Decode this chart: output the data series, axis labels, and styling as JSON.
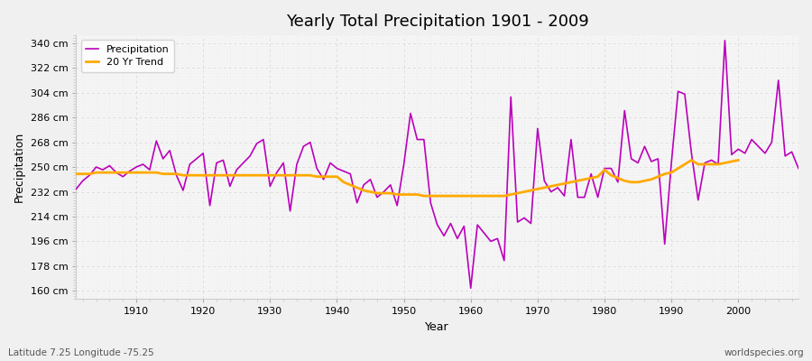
{
  "title": "Yearly Total Precipitation 1901 - 2009",
  "xlabel": "Year",
  "ylabel": "Precipitation",
  "lat_lon_label": "Latitude 7.25 Longitude -75.25",
  "worldspecies_label": "worldspecies.org",
  "yticks": [
    160,
    178,
    196,
    214,
    232,
    250,
    268,
    286,
    304,
    322,
    340
  ],
  "ytick_labels": [
    "160 cm",
    "178 cm",
    "196 cm",
    "214 cm",
    "232 cm",
    "250 cm",
    "268 cm",
    "286 cm",
    "304 cm",
    "322 cm",
    "340 cm"
  ],
  "ylim": [
    154,
    346
  ],
  "xlim": [
    1901,
    2009
  ],
  "xticks": [
    1910,
    1920,
    1930,
    1940,
    1950,
    1960,
    1970,
    1980,
    1990,
    2000
  ],
  "bg_outer_color": "#f0f0f0",
  "bg_plot_color": "#f5f5f5",
  "grid_major_color": "#dddddd",
  "grid_minor_color": "#e8e8e8",
  "precip_color": "#bb00bb",
  "trend_color": "#ffaa00",
  "precip_linewidth": 1.2,
  "trend_linewidth": 2.0,
  "years": [
    1901,
    1902,
    1903,
    1904,
    1905,
    1906,
    1907,
    1908,
    1909,
    1910,
    1911,
    1912,
    1913,
    1914,
    1915,
    1916,
    1917,
    1918,
    1919,
    1920,
    1921,
    1922,
    1923,
    1924,
    1925,
    1926,
    1927,
    1928,
    1929,
    1930,
    1931,
    1932,
    1933,
    1934,
    1935,
    1936,
    1937,
    1938,
    1939,
    1940,
    1941,
    1942,
    1943,
    1944,
    1945,
    1946,
    1947,
    1948,
    1949,
    1950,
    1951,
    1952,
    1953,
    1954,
    1955,
    1956,
    1957,
    1958,
    1959,
    1960,
    1961,
    1962,
    1963,
    1964,
    1965,
    1966,
    1967,
    1968,
    1969,
    1970,
    1971,
    1972,
    1973,
    1974,
    1975,
    1976,
    1977,
    1978,
    1979,
    1980,
    1981,
    1982,
    1983,
    1984,
    1985,
    1986,
    1987,
    1988,
    1989,
    1990,
    1991,
    1992,
    1993,
    1994,
    1995,
    1996,
    1997,
    1998,
    1999,
    2000,
    2001,
    2002,
    2003,
    2004,
    2005,
    2006,
    2007,
    2008,
    2009
  ],
  "precipitation": [
    234,
    240,
    244,
    250,
    248,
    251,
    246,
    243,
    247,
    250,
    252,
    248,
    269,
    256,
    262,
    244,
    233,
    252,
    256,
    260,
    222,
    253,
    255,
    236,
    248,
    253,
    258,
    267,
    270,
    236,
    246,
    253,
    218,
    252,
    265,
    268,
    249,
    241,
    253,
    249,
    247,
    245,
    224,
    237,
    241,
    228,
    232,
    237,
    222,
    252,
    289,
    270,
    270,
    224,
    208,
    200,
    209,
    198,
    207,
    162,
    208,
    202,
    196,
    198,
    182,
    301,
    210,
    213,
    209,
    278,
    240,
    232,
    235,
    229,
    270,
    228,
    228,
    245,
    228,
    249,
    249,
    239,
    291,
    256,
    253,
    265,
    254,
    256,
    194,
    253,
    305,
    303,
    260,
    226,
    253,
    255,
    252,
    342,
    259,
    263,
    260,
    270,
    265,
    260,
    268,
    313,
    258,
    261,
    249
  ],
  "trend": [
    245,
    245,
    245,
    246,
    246,
    246,
    246,
    246,
    246,
    246,
    246,
    246,
    246,
    245,
    245,
    245,
    244,
    244,
    244,
    244,
    244,
    244,
    244,
    244,
    244,
    244,
    244,
    244,
    244,
    244,
    244,
    244,
    244,
    244,
    244,
    244,
    243,
    243,
    243,
    243,
    239,
    237,
    235,
    233,
    232,
    231,
    231,
    231,
    230,
    230,
    230,
    230,
    229,
    229,
    229,
    229,
    229,
    229,
    229,
    229,
    229,
    229,
    229,
    229,
    229,
    230,
    231,
    232,
    233,
    234,
    235,
    236,
    237,
    238,
    239,
    240,
    241,
    242,
    243,
    248,
    244,
    242,
    240,
    239,
    239,
    240,
    241,
    243,
    245,
    246,
    249,
    252,
    255,
    252,
    252,
    252,
    252,
    253,
    254,
    255,
    null,
    null,
    null,
    null,
    null,
    null,
    null,
    null,
    null
  ]
}
